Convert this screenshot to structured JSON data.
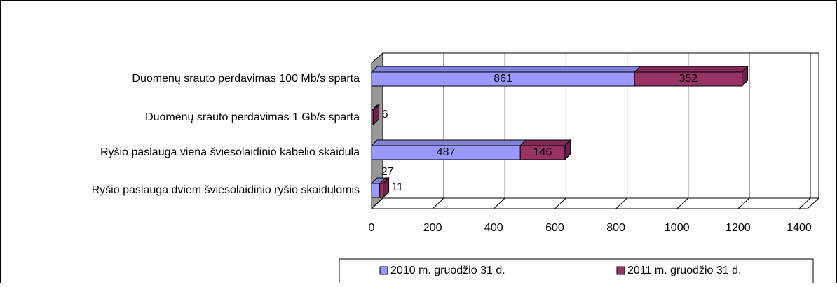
{
  "chart_data": {
    "type": "bar",
    "orientation": "horizontal",
    "stacked": true,
    "three_d": true,
    "categories": [
      "Duomenų srauto perdavimas 100 Mb/s sparta",
      "Duomenų srauto perdavimas 1 Gb/s sparta",
      "Ryšio paslauga viena šviesolaidinio kabelio skaidula",
      "Ryšio paslauga dviem šviesolaidinio ryšio skaidulomis"
    ],
    "series": [
      {
        "name": "2010 m. gruodžio 31 d.",
        "color": "#9999ff",
        "values": [
          861,
          null,
          487,
          27
        ]
      },
      {
        "name": "2011 m. gruodžio 31 d.",
        "color": "#993366",
        "values": [
          352,
          6,
          146,
          11
        ]
      }
    ],
    "xlim": [
      0,
      1400
    ],
    "xticks": [
      0,
      200,
      400,
      600,
      800,
      1000,
      1200,
      1400
    ],
    "grid": true,
    "legend": "bottom"
  }
}
